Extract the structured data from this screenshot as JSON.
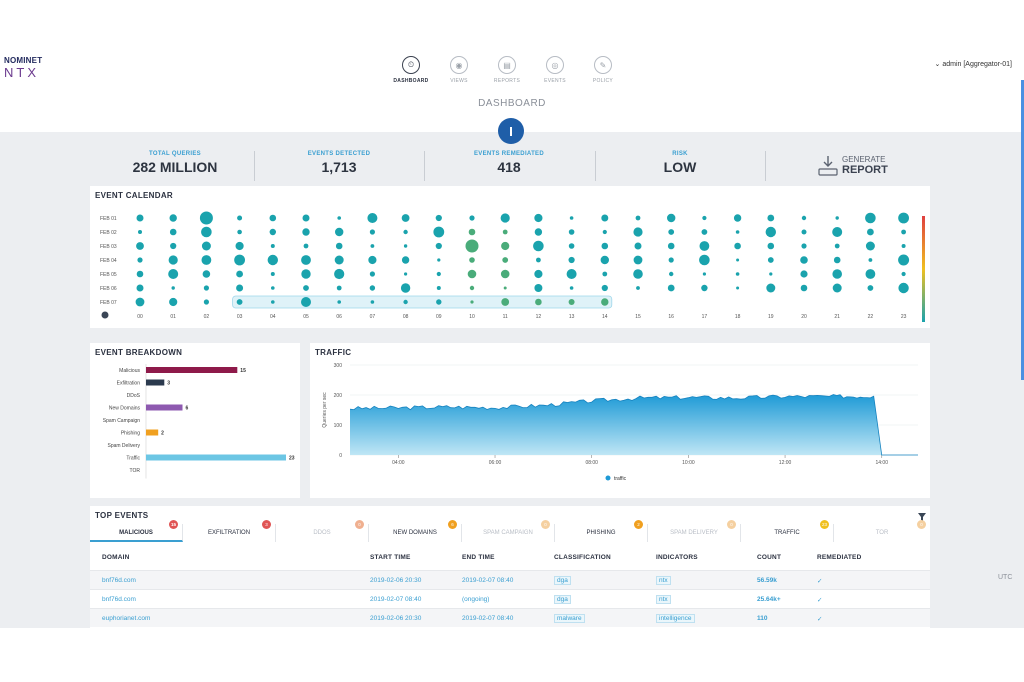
{
  "brand": {
    "small": "NOMINET",
    "main": "NTX"
  },
  "nav": [
    {
      "label": "DASHBOARD",
      "icon": "dashboard-icon",
      "active": true
    },
    {
      "label": "VIEWS",
      "icon": "eye-icon",
      "active": false
    },
    {
      "label": "REPORTS",
      "icon": "document-icon",
      "active": false
    },
    {
      "label": "EVENTS",
      "icon": "target-icon",
      "active": false
    },
    {
      "label": "POLICY",
      "icon": "wrench-icon",
      "active": false
    }
  ],
  "user": "admin [Aggregator-01]",
  "page_title": "DASHBOARD",
  "stats": [
    {
      "label": "TOTAL QUERIES",
      "value": "282 MILLION"
    },
    {
      "label": "EVENTS DETECTED",
      "value": "1,713"
    },
    {
      "label": "EVENTS REMEDIATED",
      "value": "418"
    },
    {
      "label": "RISK",
      "value": "LOW"
    }
  ],
  "generate": {
    "line1": "GENERATE",
    "line2": "REPORT"
  },
  "calendar": {
    "title": "EVENT CALENDAR",
    "rows": [
      "FEB 01",
      "FEB 02",
      "FEB 03",
      "FEB 04",
      "FEB 05",
      "FEB 06",
      "FEB 07"
    ],
    "cols": [
      "00",
      "01",
      "02",
      "03",
      "04",
      "05",
      "06",
      "07",
      "08",
      "09",
      "10",
      "11",
      "12",
      "13",
      "14",
      "15",
      "16",
      "17",
      "18",
      "19",
      "20",
      "21",
      "22",
      "23"
    ]
  },
  "breakdown": {
    "title": "EVENT BREAKDOWN",
    "items": [
      {
        "label": "Malicious",
        "value": 15,
        "color": "#8e1a4a"
      },
      {
        "label": "Exfiltration",
        "value": 3,
        "color": "#2b3a4e"
      },
      {
        "label": "DDoS",
        "value": 0,
        "color": "#999999"
      },
      {
        "label": "New Domains",
        "value": 6,
        "color": "#8e5ab0"
      },
      {
        "label": "Spam Campaign",
        "value": 0,
        "color": "#999999"
      },
      {
        "label": "Phishing",
        "value": 2,
        "color": "#f0a020"
      },
      {
        "label": "Spam Delivery",
        "value": 0,
        "color": "#999999"
      },
      {
        "label": "Traffic",
        "value": 23,
        "color": "#6cc6e4"
      },
      {
        "label": "TOR",
        "value": 0,
        "color": "#999999"
      }
    ]
  },
  "chart_data": {
    "type": "area",
    "title": "TRAFFIC",
    "ylabel": "Queries per sec",
    "ylim": [
      0,
      300
    ],
    "yticks": [
      "300",
      "200",
      "100",
      "0"
    ],
    "xticks": [
      "04:00",
      "06:00",
      "08:00",
      "10:00",
      "12:00",
      "14:00"
    ],
    "series": [
      {
        "name": "traffic",
        "color": "#1e9ad6",
        "x": [
          "03:00",
          "04:00",
          "05:00",
          "06:00",
          "07:00",
          "08:00",
          "09:00",
          "10:00",
          "11:00",
          "12:00",
          "13:00",
          "13:50",
          "14:00",
          "14:45"
        ],
        "values": [
          155,
          157,
          160,
          158,
          165,
          180,
          190,
          192,
          190,
          195,
          195,
          196,
          0,
          0
        ]
      }
    ]
  },
  "top_events": {
    "title": "TOP EVENTS",
    "tabs": [
      {
        "label": "MALICIOUS",
        "badge": "15",
        "color": "#e05555",
        "dim": false,
        "active": true
      },
      {
        "label": "EXFILTRATION",
        "badge": "3",
        "color": "#e05555",
        "dim": false,
        "active": false
      },
      {
        "label": "DDOS",
        "badge": "0",
        "color": "#f0b090",
        "dim": true,
        "active": false
      },
      {
        "label": "NEW DOMAINS",
        "badge": "6",
        "color": "#f0a020",
        "dim": false,
        "active": false
      },
      {
        "label": "SPAM CAMPAIGN",
        "badge": "0",
        "color": "#f5d0a0",
        "dim": true,
        "active": false
      },
      {
        "label": "PHISHING",
        "badge": "2",
        "color": "#f0a020",
        "dim": false,
        "active": false
      },
      {
        "label": "SPAM DELIVERY",
        "badge": "0",
        "color": "#f5d0a0",
        "dim": true,
        "active": false
      },
      {
        "label": "TRAFFIC",
        "badge": "23",
        "color": "#f0c020",
        "dim": false,
        "active": false
      },
      {
        "label": "TOR",
        "badge": "0",
        "color": "#f5d0a0",
        "dim": true,
        "active": false
      }
    ],
    "columns": [
      "DOMAIN",
      "START TIME",
      "END TIME",
      "CLASSIFICATION",
      "INDICATORS",
      "COUNT",
      "REMEDIATED"
    ],
    "rows": [
      {
        "domain": "bnf76d.com",
        "start": "2019-02-06 20:30",
        "end": "2019-02-07 08:40",
        "classification": "dga",
        "indicators": "ntx",
        "count": "56.59k",
        "remediated": "✓"
      },
      {
        "domain": "bnf76d.com",
        "start": "2019-02-07 08:40",
        "end": "(ongoing)",
        "classification": "dga",
        "indicators": "ntx",
        "count": "25.64k+",
        "remediated": "✓"
      },
      {
        "domain": "euphorianet.com",
        "start": "2019-02-06 20:30",
        "end": "2019-02-07 08:40",
        "classification": "malware",
        "indicators": "intelligence",
        "count": "110",
        "remediated": "✓"
      }
    ]
  },
  "timezone": "UTC"
}
